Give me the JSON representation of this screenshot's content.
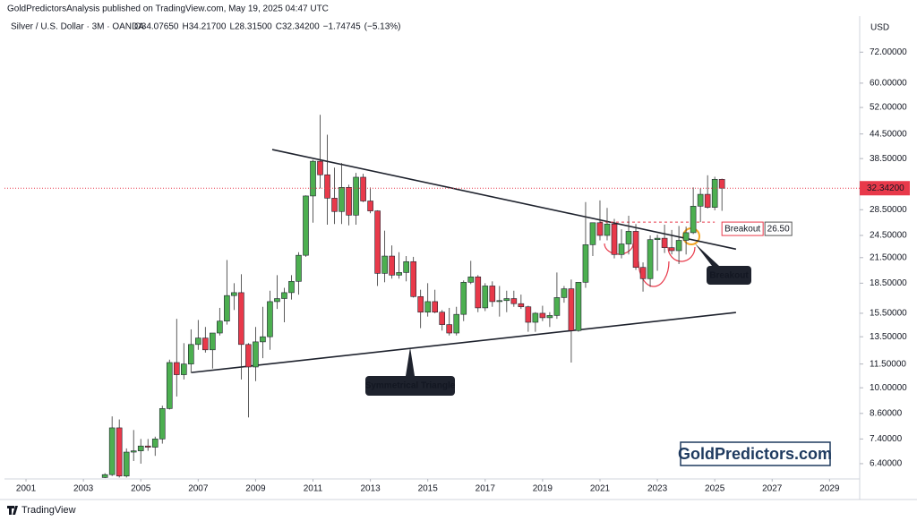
{
  "header": {
    "publisher": "GoldPredictorsAnalysis published on TradingView.com, May 19, 2025 04:47 UTC"
  },
  "footer": {
    "brand": "TradingView"
  },
  "chart_data": {
    "type": "candlestick",
    "symbol": "Silver / U.S. Dollar · 3M · OANDA",
    "legend_values": [
      {
        "value": 34.0765,
        "label": "O34.07650"
      },
      {
        "value": 34.217,
        "label": "H34.21700"
      },
      {
        "value": 28.315,
        "label": "L28.31500"
      },
      {
        "value": 32.342,
        "label": "C32.34200"
      },
      {
        "value": -1.74745,
        "label": "−1.74745"
      },
      {
        "value": -5.13,
        "label": "(−5.13%)"
      }
    ],
    "y_unit": "USD",
    "log": true,
    "grid": false,
    "up_color": "#4caf50",
    "down_color": "#e8394a",
    "xlim": [
      2000.25,
      2030.05
    ],
    "xticks": [
      2001,
      2003,
      2005,
      2007,
      2009,
      2011,
      2013,
      2015,
      2017,
      2019,
      2021,
      2023,
      2025,
      2027,
      2029
    ],
    "ylim": [
      5.85,
      89
    ],
    "yticks": [
      {
        "value": 72,
        "label": "72.00000"
      },
      {
        "value": 60,
        "label": "60.00000"
      },
      {
        "value": 52,
        "label": "52.00000"
      },
      {
        "value": 44.5,
        "label": "44.50000"
      },
      {
        "value": 38.5,
        "label": "38.50000"
      },
      {
        "value": 28.5,
        "label": "28.50000"
      },
      {
        "value": 24.5,
        "label": "24.50000"
      },
      {
        "value": 21.5,
        "label": "21.50000"
      },
      {
        "value": 18.5,
        "label": "18.50000"
      },
      {
        "value": 15.5,
        "label": "15.50000"
      },
      {
        "value": 13.5,
        "label": "13.50000"
      },
      {
        "value": 11.5,
        "label": "11.50000"
      },
      {
        "value": 10,
        "label": "10.00000"
      },
      {
        "value": 8.6,
        "label": "8.60000"
      },
      {
        "value": 7.4,
        "label": "7.40000"
      },
      {
        "value": 6.4,
        "label": "6.40000"
      }
    ],
    "last_price": {
      "value": 32.342,
      "label": "32.34200"
    },
    "breakout_level": {
      "value": 26.5,
      "label": "26.50",
      "text": "Breakout",
      "x": [
        2021,
        2025
      ]
    },
    "trendlines": [
      {
        "x": [
          2009.58,
          2025.74
        ],
        "y": [
          40.6,
          22.6
        ]
      },
      {
        "x": [
          2006.77,
          2025.74
        ],
        "y": [
          10.94,
          15.57
        ]
      }
    ],
    "annotations": [
      "Symmetrical Triangle",
      "Breakout"
    ],
    "watermark": "GoldPredictors.com",
    "x": [
      2003.75,
      2004,
      2004.25,
      2004.5,
      2004.75,
      2005,
      2005.25,
      2005.5,
      2005.75,
      2006,
      2006.25,
      2006.5,
      2006.75,
      2007,
      2007.25,
      2007.5,
      2007.75,
      2008,
      2008.25,
      2008.5,
      2008.75,
      2009,
      2009.25,
      2009.5,
      2009.75,
      2010,
      2010.25,
      2010.5,
      2010.75,
      2011,
      2011.25,
      2011.5,
      2011.75,
      2012,
      2012.25,
      2012.5,
      2012.75,
      2013,
      2013.25,
      2013.5,
      2013.75,
      2014,
      2014.25,
      2014.5,
      2014.75,
      2015,
      2015.25,
      2015.5,
      2015.75,
      2016,
      2016.25,
      2016.5,
      2016.75,
      2017,
      2017.25,
      2017.5,
      2017.75,
      2018,
      2018.25,
      2018.5,
      2018.75,
      2019,
      2019.25,
      2019.5,
      2019.75,
      2020,
      2020.25,
      2020.5,
      2020.75,
      2021,
      2021.25,
      2021.5,
      2021.75,
      2022,
      2022.25,
      2022.5,
      2022.75,
      2023,
      2023.25,
      2023.5,
      2023.75,
      2024,
      2024.25,
      2024.5,
      2024.75,
      2025,
      2025.25
    ],
    "ohlc": [
      [
        5.9,
        6.05,
        5.88,
        6.0
      ],
      [
        6.0,
        8.45,
        5.95,
        7.9
      ],
      [
        7.9,
        8.3,
        5.9,
        5.95
      ],
      [
        5.95,
        7.0,
        5.9,
        6.85
      ],
      [
        6.85,
        7.8,
        6.5,
        6.9
      ],
      [
        6.9,
        7.4,
        6.4,
        7.1
      ],
      [
        7.1,
        7.4,
        6.9,
        7.05
      ],
      [
        7.05,
        7.5,
        6.7,
        7.4
      ],
      [
        7.4,
        9.0,
        7.2,
        8.85
      ],
      [
        8.85,
        11.8,
        8.8,
        11.6
      ],
      [
        11.6,
        15.0,
        9.5,
        10.8
      ],
      [
        10.8,
        13.0,
        10.5,
        11.5
      ],
      [
        11.5,
        14.1,
        10.9,
        12.9
      ],
      [
        12.9,
        14.9,
        12.5,
        13.4
      ],
      [
        13.4,
        14.3,
        12.3,
        12.5
      ],
      [
        12.5,
        13.8,
        11.2,
        13.8
      ],
      [
        13.8,
        16.0,
        13.6,
        14.8
      ],
      [
        14.8,
        21.2,
        14.5,
        17.2
      ],
      [
        17.2,
        18.5,
        15.8,
        17.5
      ],
      [
        17.5,
        19.5,
        10.5,
        12.9
      ],
      [
        12.9,
        13.0,
        8.4,
        11.3
      ],
      [
        11.3,
        14.3,
        10.4,
        13.1
      ],
      [
        13.1,
        16.1,
        11.9,
        13.5
      ],
      [
        13.5,
        17.7,
        12.5,
        16.6
      ],
      [
        16.6,
        19.4,
        15.9,
        16.9
      ],
      [
        16.9,
        18.0,
        14.7,
        17.5
      ],
      [
        17.5,
        19.4,
        16.8,
        18.7
      ],
      [
        18.7,
        22.2,
        17.3,
        21.8
      ],
      [
        21.8,
        31.0,
        21.6,
        30.9
      ],
      [
        30.9,
        38.2,
        26.4,
        37.9
      ],
      [
        37.9,
        49.8,
        32.3,
        35.0
      ],
      [
        35.0,
        44.3,
        26.1,
        30.5
      ],
      [
        30.5,
        36.5,
        26.2,
        28.2
      ],
      [
        28.2,
        37.5,
        26.2,
        32.5
      ],
      [
        32.5,
        33.0,
        26.0,
        27.6
      ],
      [
        27.6,
        35.4,
        26.1,
        34.5
      ],
      [
        34.5,
        35.2,
        29.8,
        30.0
      ],
      [
        30.0,
        32.5,
        27.9,
        28.3
      ],
      [
        28.3,
        28.4,
        18.2,
        19.6
      ],
      [
        19.6,
        25.2,
        18.6,
        21.7
      ],
      [
        21.7,
        23.1,
        19.0,
        19.4
      ],
      [
        19.4,
        22.2,
        19.0,
        19.7
      ],
      [
        19.7,
        21.7,
        18.7,
        21.0
      ],
      [
        21.0,
        21.6,
        17.0,
        17.1
      ],
      [
        17.1,
        17.8,
        14.2,
        15.6
      ],
      [
        15.6,
        18.5,
        15.2,
        16.6
      ],
      [
        16.6,
        17.8,
        15.5,
        15.6
      ],
      [
        15.6,
        15.8,
        14.0,
        14.5
      ],
      [
        14.5,
        16.0,
        13.6,
        13.8
      ],
      [
        13.8,
        16.1,
        13.6,
        15.4
      ],
      [
        15.4,
        18.8,
        14.8,
        18.6
      ],
      [
        18.6,
        21.1,
        18.4,
        19.2
      ],
      [
        19.2,
        19.4,
        15.6,
        16.0
      ],
      [
        16.0,
        18.5,
        15.7,
        18.2
      ],
      [
        18.2,
        18.7,
        16.1,
        16.6
      ],
      [
        16.6,
        18.2,
        15.2,
        16.7
      ],
      [
        16.7,
        17.7,
        15.6,
        16.9
      ],
      [
        16.9,
        17.7,
        16.1,
        16.4
      ],
      [
        16.4,
        17.3,
        15.9,
        16.1
      ],
      [
        16.1,
        16.2,
        13.9,
        14.7
      ],
      [
        14.7,
        15.6,
        13.9,
        15.5
      ],
      [
        15.5,
        16.2,
        14.8,
        15.1
      ],
      [
        15.1,
        15.6,
        14.3,
        15.3
      ],
      [
        15.3,
        19.7,
        15.0,
        17.0
      ],
      [
        17.0,
        18.2,
        16.5,
        17.9
      ],
      [
        17.9,
        18.9,
        11.6,
        14.0
      ],
      [
        14.0,
        18.6,
        13.9,
        18.6
      ],
      [
        18.6,
        29.8,
        18.0,
        23.2
      ],
      [
        23.2,
        26.3,
        21.7,
        26.4
      ],
      [
        26.4,
        30.1,
        23.8,
        24.5
      ],
      [
        24.5,
        28.8,
        23.8,
        26.2
      ],
      [
        26.2,
        27.0,
        21.4,
        21.9
      ],
      [
        21.9,
        25.4,
        21.4,
        23.3
      ],
      [
        23.3,
        27.5,
        21.9,
        25.1
      ],
      [
        25.1,
        26.2,
        20.0,
        20.3
      ],
      [
        20.3,
        20.9,
        17.6,
        19.0
      ],
      [
        19.0,
        24.5,
        18.1,
        23.9
      ],
      [
        23.9,
        24.6,
        19.9,
        24.1
      ],
      [
        24.1,
        26.1,
        22.1,
        22.8
      ],
      [
        22.8,
        25.3,
        21.9,
        22.4
      ],
      [
        22.4,
        25.9,
        20.7,
        23.8
      ],
      [
        23.8,
        25.8,
        21.9,
        24.9
      ],
      [
        24.9,
        32.5,
        24.7,
        29.1
      ],
      [
        29.1,
        32.3,
        26.5,
        31.2
      ],
      [
        31.2,
        34.9,
        28.7,
        28.9
      ],
      [
        28.9,
        34.6,
        28.4,
        34.08
      ],
      [
        34.0765,
        34.217,
        28.315,
        32.342
      ]
    ]
  }
}
